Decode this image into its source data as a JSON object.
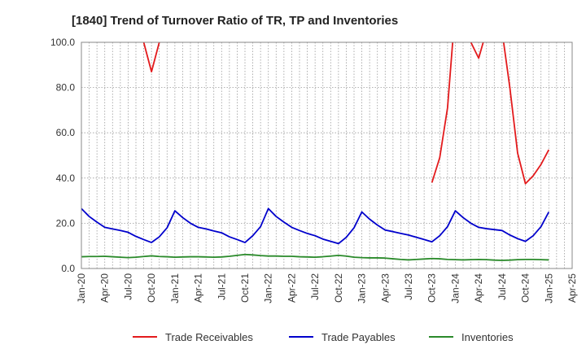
{
  "chart_data": {
    "type": "line",
    "title": "[1840]  Trend of Turnover Ratio of TR, TP and Inventories",
    "xlabel": "",
    "ylabel": "",
    "ylim": [
      0,
      100
    ],
    "y_ticks": [
      "0.0",
      "20.0",
      "40.0",
      "60.0",
      "80.0",
      "100.0"
    ],
    "x_tick_labels": [
      "Jan-20",
      "Apr-20",
      "Jul-20",
      "Oct-20",
      "Jan-21",
      "Apr-21",
      "Jul-21",
      "Oct-21",
      "Jan-22",
      "Apr-22",
      "Jul-22",
      "Oct-22",
      "Jan-23",
      "Apr-23",
      "Jul-23",
      "Oct-23",
      "Jan-24",
      "Apr-24",
      "Jul-24",
      "Oct-24",
      "Jan-25",
      "Apr-25"
    ],
    "x": [
      "Jan-20",
      "Feb-20",
      "Mar-20",
      "Apr-20",
      "May-20",
      "Jun-20",
      "Jul-20",
      "Aug-20",
      "Sep-20",
      "Oct-20",
      "Nov-20",
      "Dec-20",
      "Jan-21",
      "Feb-21",
      "Mar-21",
      "Apr-21",
      "May-21",
      "Jun-21",
      "Jul-21",
      "Aug-21",
      "Sep-21",
      "Oct-21",
      "Nov-21",
      "Dec-21",
      "Jan-22",
      "Feb-22",
      "Mar-22",
      "Apr-22",
      "May-22",
      "Jun-22",
      "Jul-22",
      "Aug-22",
      "Sep-22",
      "Oct-22",
      "Nov-22",
      "Dec-22",
      "Jan-23",
      "Feb-23",
      "Mar-23",
      "Apr-23",
      "May-23",
      "Jun-23",
      "Jul-23",
      "Aug-23",
      "Sep-23",
      "Oct-23",
      "Nov-23",
      "Dec-23",
      "Jan-24",
      "Feb-24",
      "Mar-24",
      "Apr-24",
      "May-24",
      "Jun-24",
      "Jul-24",
      "Aug-24",
      "Sep-24",
      "Oct-24",
      "Nov-24",
      "Dec-24",
      "Jan-25"
    ],
    "grid": true,
    "legend_position": "bottom",
    "series": [
      {
        "name": "Trade Receivables",
        "color": "#e31a1c",
        "values": [
          null,
          null,
          null,
          null,
          null,
          null,
          110,
          105,
          100,
          87,
          100,
          115,
          null,
          null,
          null,
          null,
          null,
          null,
          null,
          null,
          null,
          null,
          null,
          null,
          null,
          null,
          null,
          null,
          null,
          null,
          null,
          null,
          null,
          null,
          null,
          null,
          null,
          null,
          null,
          null,
          null,
          null,
          null,
          null,
          null,
          38,
          49,
          71,
          115,
          null,
          100,
          93,
          105,
          null,
          105,
          80,
          51,
          37.5,
          41,
          46,
          52.5
        ]
      },
      {
        "name": "Trade Payables",
        "color": "#0000cc",
        "values": [
          26.5,
          23,
          20.5,
          18.2,
          17.5,
          16.8,
          16,
          14.2,
          12.8,
          11.5,
          14,
          18,
          25.5,
          22.5,
          20,
          18.2,
          17.5,
          16.6,
          15.8,
          14,
          12.8,
          11.5,
          14.5,
          18.5,
          26.5,
          23,
          20.5,
          18.2,
          16.8,
          15.5,
          14.5,
          13,
          12,
          11,
          13.8,
          18,
          25,
          21.8,
          19.2,
          17,
          16.3,
          15.5,
          14.8,
          13.8,
          12.8,
          11.8,
          14.5,
          18.5,
          25.5,
          22.5,
          20,
          18.2,
          17.6,
          17.2,
          16.8,
          14.8,
          13.2,
          12,
          14.5,
          18.5,
          25
        ]
      },
      {
        "name": "Inventories",
        "color": "#2a8a2a",
        "values": [
          5.2,
          5.3,
          5.3,
          5.4,
          5.2,
          5,
          4.8,
          5,
          5.3,
          5.6,
          5.3,
          5.2,
          5,
          5.1,
          5.2,
          5.2,
          5.1,
          5,
          5.1,
          5.4,
          5.8,
          6.2,
          6,
          5.7,
          5.5,
          5.5,
          5.4,
          5.4,
          5.2,
          5.1,
          5,
          5.2,
          5.5,
          5.8,
          5.5,
          5,
          4.8,
          4.7,
          4.7,
          4.6,
          4.3,
          4,
          3.8,
          4,
          4.2,
          4.4,
          4.3,
          4,
          3.9,
          3.8,
          3.9,
          4,
          3.9,
          3.7,
          3.6,
          3.7,
          3.9,
          4,
          4,
          3.9,
          3.8
        ]
      }
    ]
  }
}
